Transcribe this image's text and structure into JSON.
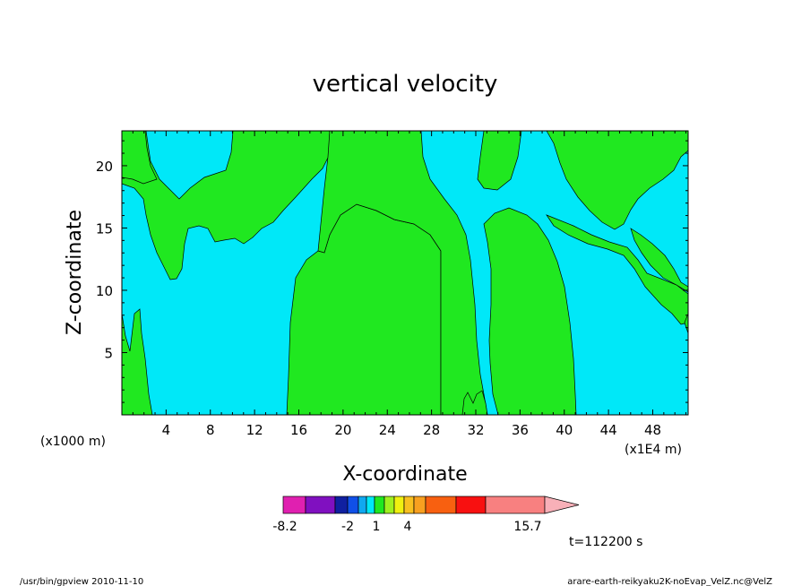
{
  "chart_data": {
    "type": "filled-contour",
    "title": "vertical velocity",
    "xlabel": "X-coordinate",
    "ylabel": "Z-coordinate",
    "x_unit_left": "(x1000 m)",
    "x_unit_right": "(x1E4 m)",
    "xlim": [
      0,
      51.2
    ],
    "ylim": [
      0,
      22.8
    ],
    "x_ticks": [
      4,
      8,
      12,
      16,
      20,
      24,
      28,
      32,
      36,
      40,
      44,
      48
    ],
    "y_ticks": [
      5,
      10,
      15,
      20
    ],
    "regions": {
      "background_level": "cyan",
      "positive_level": "green"
    },
    "colorbar": {
      "colors": [
        "#e020b0",
        "#8010c0",
        "#1020a0",
        "#1050e8",
        "#10a8f0",
        "#00e8f8",
        "#20e820",
        "#a0f020",
        "#f0f010",
        "#f8c020",
        "#f8a020",
        "#f86010",
        "#f81010",
        "#f88080",
        "#f8b0b8"
      ],
      "labels": [
        "-8.2",
        "-2",
        "1",
        "4",
        "15.7"
      ]
    },
    "time_label": "t=112200 s"
  },
  "footer": {
    "left": "/usr/bin/gpview   2010-11-10",
    "right": "arare-earth-reikyaku2K-noEvap_VelZ.nc@VelZ"
  },
  "colors": {
    "cyan": "#00e8f8",
    "green": "#20e820",
    "frame": "#000000"
  }
}
